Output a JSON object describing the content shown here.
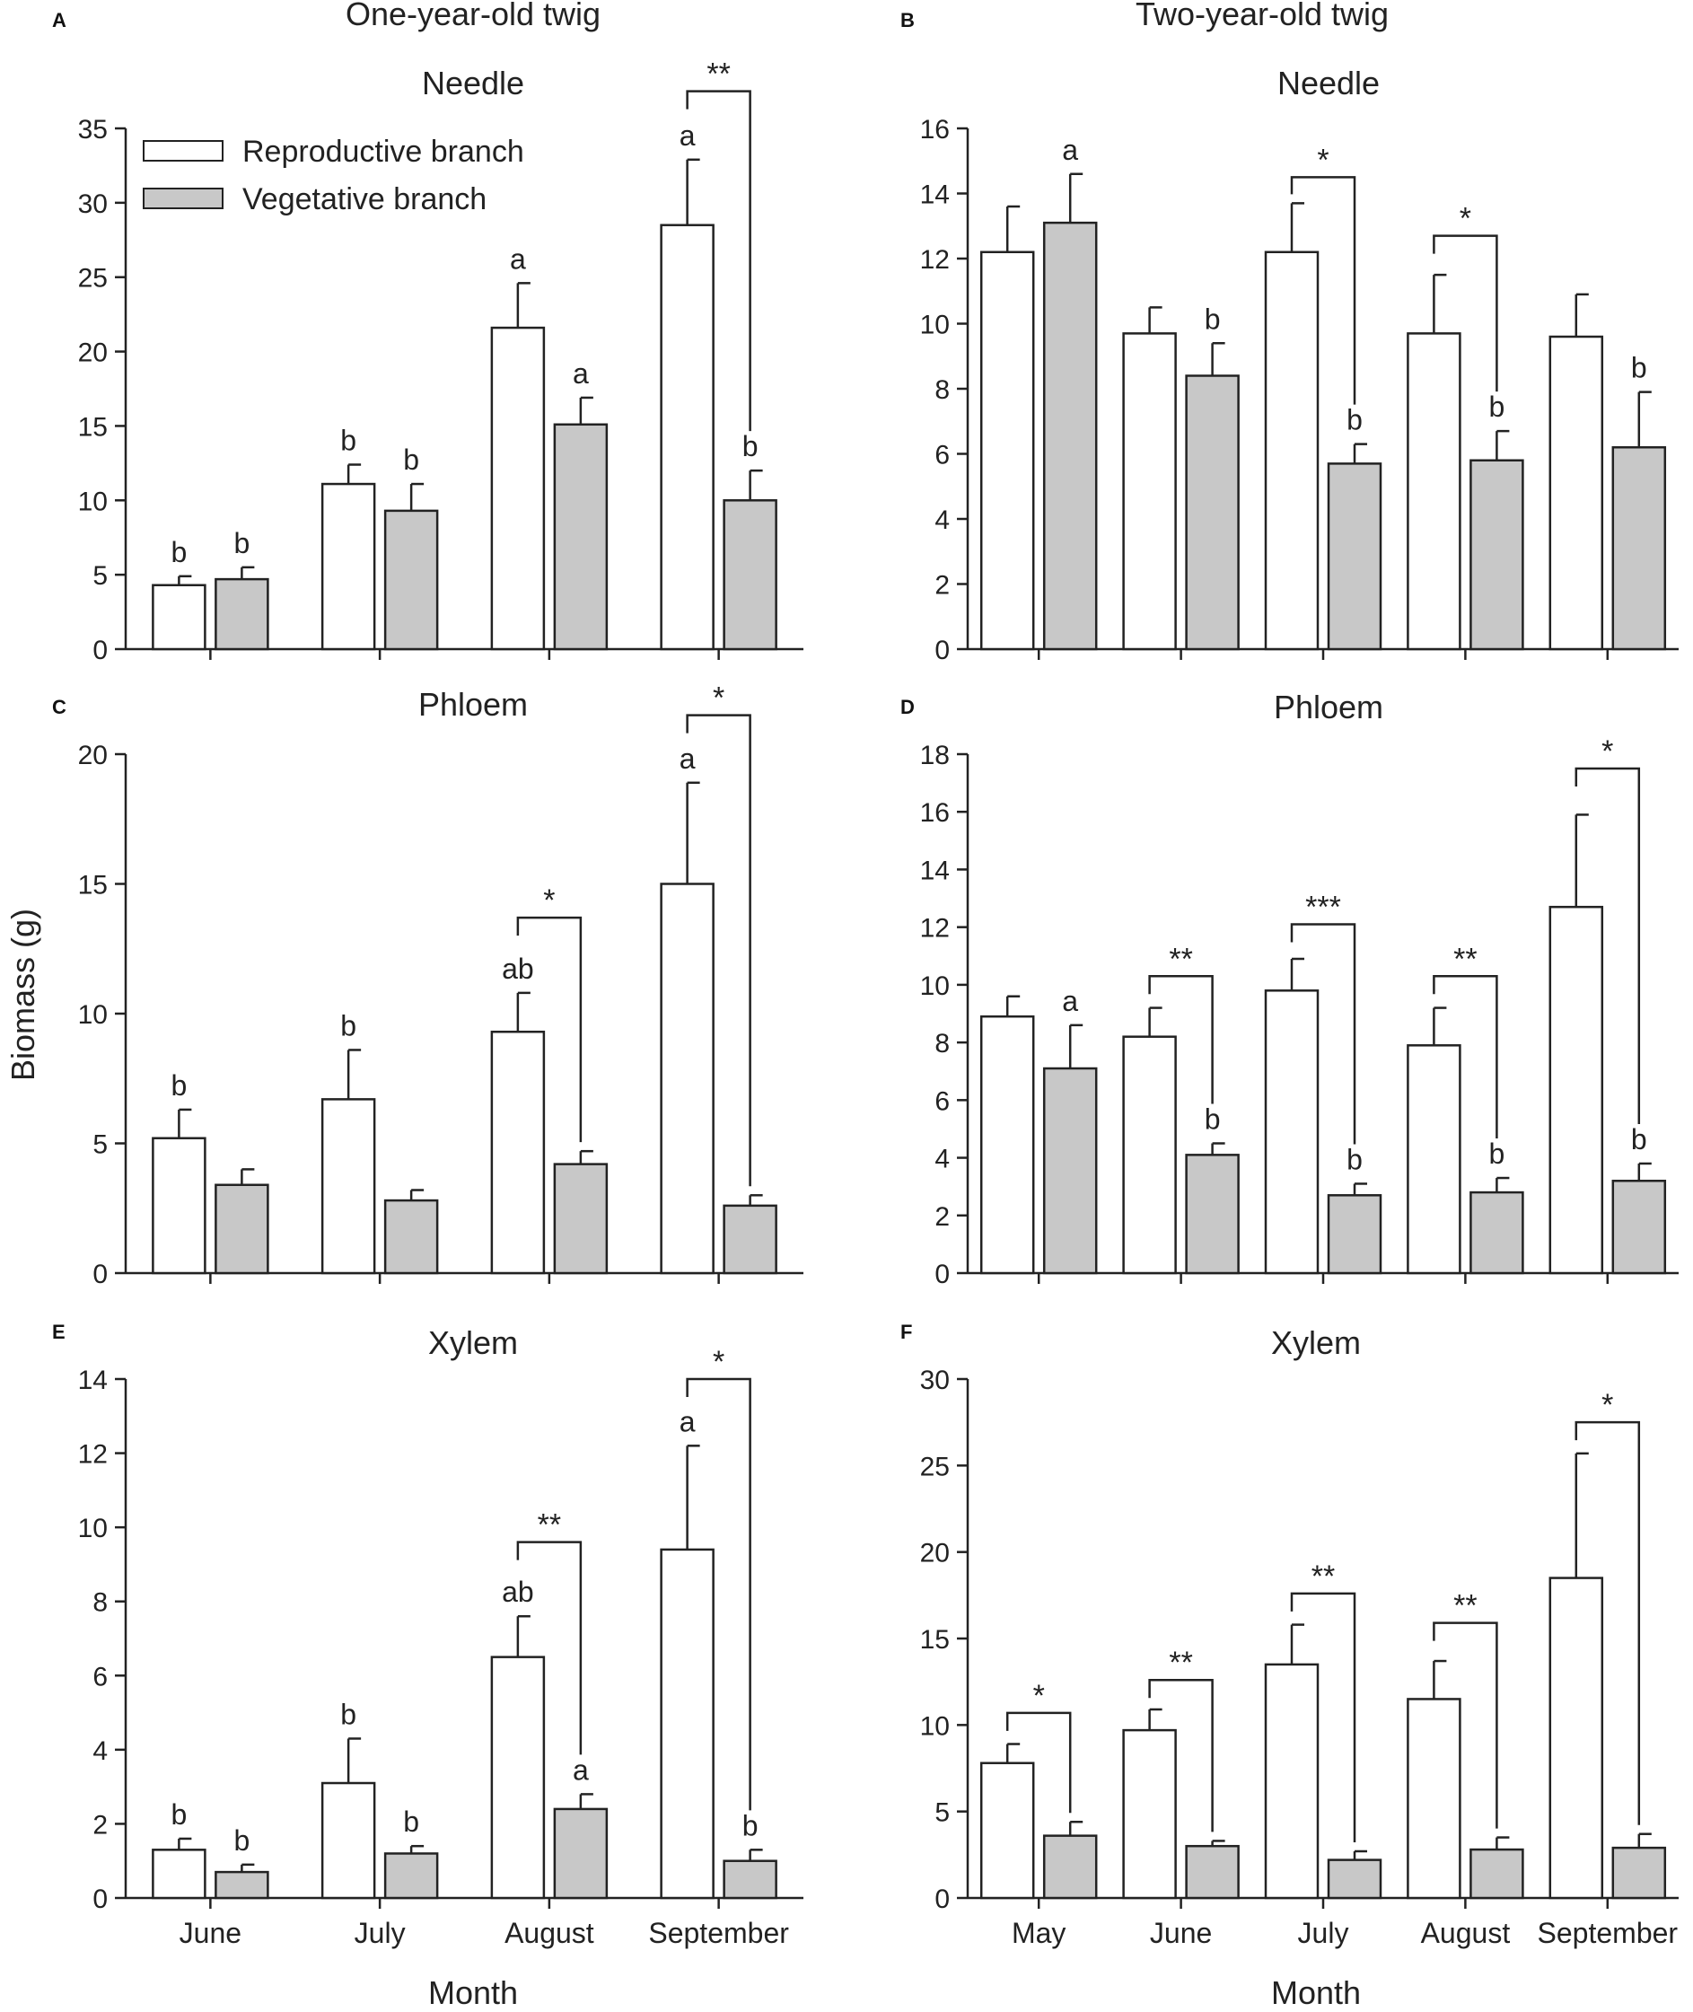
{
  "figure": {
    "column_titles": [
      "One-year-old twig",
      "Two-year-old twig"
    ],
    "y_axis_title": "Biomass (g)",
    "x_axis_title": "Month",
    "legend": [
      {
        "label": "Reproductive branch",
        "color": "#ffffff"
      },
      {
        "label": "Vegetative branch",
        "color": "#c8c8c8"
      }
    ]
  },
  "colors": {
    "reproductive": "#ffffff",
    "vegetative": "#c8c8c8",
    "stroke": "#222222"
  },
  "chart_data": [
    {
      "id": "A",
      "type": "bar",
      "title": "Needle",
      "column_title": "One-year-old twig",
      "categories": [
        "June",
        "July",
        "August",
        "September"
      ],
      "ylim": [
        0,
        35
      ],
      "yticks": [
        0,
        5,
        10,
        15,
        20,
        25,
        30,
        35
      ],
      "series": [
        {
          "name": "Reproductive branch",
          "values": [
            4.3,
            11.1,
            21.6,
            28.5
          ],
          "errors": [
            0.6,
            1.3,
            3.0,
            4.4
          ],
          "letters": [
            "b",
            "b",
            "a",
            "a"
          ]
        },
        {
          "name": "Vegetative branch",
          "values": [
            4.7,
            9.3,
            15.1,
            10.0
          ],
          "errors": [
            0.8,
            1.8,
            1.8,
            2.0
          ],
          "letters": [
            "b",
            "b",
            "a",
            "b"
          ]
        }
      ],
      "significance": [
        {
          "category": "September",
          "label": "**",
          "top": 37.5
        }
      ],
      "legend": true
    },
    {
      "id": "B",
      "type": "bar",
      "title": "Needle",
      "column_title": "Two-year-old twig",
      "categories": [
        "May",
        "June",
        "July",
        "August",
        "September"
      ],
      "ylim": [
        0,
        16
      ],
      "yticks": [
        0,
        2,
        4,
        6,
        8,
        10,
        12,
        14,
        16
      ],
      "series": [
        {
          "name": "Reproductive branch",
          "values": [
            12.2,
            9.7,
            12.2,
            9.7,
            9.6
          ],
          "errors": [
            1.4,
            0.8,
            1.5,
            1.8,
            1.3
          ],
          "letters": [
            "",
            "",
            "",
            "",
            ""
          ]
        },
        {
          "name": "Vegetative branch",
          "values": [
            13.1,
            8.4,
            5.7,
            5.8,
            6.2
          ],
          "errors": [
            1.5,
            1.0,
            0.6,
            0.9,
            1.7
          ],
          "letters": [
            "a",
            "b",
            "b",
            "b",
            "b"
          ]
        }
      ],
      "significance": [
        {
          "category": "July",
          "label": "*",
          "top": 14.5
        },
        {
          "category": "August",
          "label": "*",
          "top": 12.7
        }
      ]
    },
    {
      "id": "C",
      "type": "bar",
      "title": "Phloem",
      "column_title": "",
      "categories": [
        "June",
        "July",
        "August",
        "September"
      ],
      "ylim": [
        0,
        20
      ],
      "yticks": [
        0,
        5,
        10,
        15,
        20
      ],
      "series": [
        {
          "name": "Reproductive branch",
          "values": [
            5.2,
            6.7,
            9.3,
            15.0
          ],
          "errors": [
            1.1,
            1.9,
            1.5,
            3.9
          ],
          "letters": [
            "b",
            "b",
            "ab",
            "a"
          ]
        },
        {
          "name": "Vegetative branch",
          "values": [
            3.4,
            2.8,
            4.2,
            2.6
          ],
          "errors": [
            0.6,
            0.4,
            0.5,
            0.4
          ],
          "letters": [
            "",
            "",
            "",
            ""
          ]
        }
      ],
      "significance": [
        {
          "category": "August",
          "label": "*",
          "top": 13.7
        },
        {
          "category": "September",
          "label": "*",
          "top": 21.5
        }
      ]
    },
    {
      "id": "D",
      "type": "bar",
      "title": "Phloem",
      "column_title": "",
      "categories": [
        "May",
        "June",
        "July",
        "August",
        "September"
      ],
      "ylim": [
        0,
        18
      ],
      "yticks": [
        0,
        2,
        4,
        6,
        8,
        10,
        12,
        14,
        16,
        18
      ],
      "series": [
        {
          "name": "Reproductive branch",
          "values": [
            8.9,
            8.2,
            9.8,
            7.9,
            12.7
          ],
          "errors": [
            0.7,
            1.0,
            1.1,
            1.3,
            3.2
          ],
          "letters": [
            "",
            "",
            "",
            "",
            ""
          ]
        },
        {
          "name": "Vegetative branch",
          "values": [
            7.1,
            4.1,
            2.7,
            2.8,
            3.2
          ],
          "errors": [
            1.5,
            0.4,
            0.4,
            0.5,
            0.6
          ],
          "letters": [
            "a",
            "b",
            "b",
            "b",
            "b"
          ]
        }
      ],
      "significance": [
        {
          "category": "June",
          "label": "**",
          "top": 10.3
        },
        {
          "category": "July",
          "label": "***",
          "top": 12.1
        },
        {
          "category": "August",
          "label": "**",
          "top": 10.3
        },
        {
          "category": "September",
          "label": "*",
          "top": 17.5
        }
      ]
    },
    {
      "id": "E",
      "type": "bar",
      "title": "Xylem",
      "column_title": "",
      "categories": [
        "June",
        "July",
        "August",
        "September"
      ],
      "ylim": [
        0,
        14
      ],
      "yticks": [
        0,
        2,
        4,
        6,
        8,
        10,
        12,
        14
      ],
      "series": [
        {
          "name": "Reproductive branch",
          "values": [
            1.3,
            3.1,
            6.5,
            9.4
          ],
          "errors": [
            0.3,
            1.2,
            1.1,
            2.8
          ],
          "letters": [
            "b",
            "b",
            "ab",
            "a"
          ]
        },
        {
          "name": "Vegetative branch",
          "values": [
            0.7,
            1.2,
            2.4,
            1.0
          ],
          "errors": [
            0.2,
            0.2,
            0.4,
            0.3
          ],
          "letters": [
            "b",
            "b",
            "a",
            "b"
          ]
        }
      ],
      "significance": [
        {
          "category": "August",
          "label": "**",
          "top": 9.6
        },
        {
          "category": "September",
          "label": "*",
          "top": 14.0
        }
      ],
      "show_x_labels": true
    },
    {
      "id": "F",
      "type": "bar",
      "title": "Xylem",
      "column_title": "",
      "categories": [
        "May",
        "June",
        "July",
        "August",
        "September"
      ],
      "ylim": [
        0,
        30
      ],
      "yticks": [
        0,
        5,
        10,
        15,
        20,
        25,
        30
      ],
      "series": [
        {
          "name": "Reproductive branch",
          "values": [
            7.8,
            9.7,
            13.5,
            11.5,
            18.5
          ],
          "errors": [
            1.1,
            1.2,
            2.3,
            2.2,
            7.2
          ],
          "letters": [
            "",
            "",
            "",
            "",
            ""
          ]
        },
        {
          "name": "Vegetative branch",
          "values": [
            3.6,
            3.0,
            2.2,
            2.8,
            2.9
          ],
          "errors": [
            0.8,
            0.3,
            0.5,
            0.7,
            0.8
          ],
          "letters": [
            "",
            "",
            "",
            "",
            ""
          ]
        }
      ],
      "significance": [
        {
          "category": "May",
          "label": "*",
          "top": 10.7
        },
        {
          "category": "June",
          "label": "**",
          "top": 12.6
        },
        {
          "category": "July",
          "label": "**",
          "top": 17.6
        },
        {
          "category": "August",
          "label": "**",
          "top": 15.9
        },
        {
          "category": "September",
          "label": "*",
          "top": 27.5
        }
      ],
      "show_x_labels": true
    }
  ]
}
